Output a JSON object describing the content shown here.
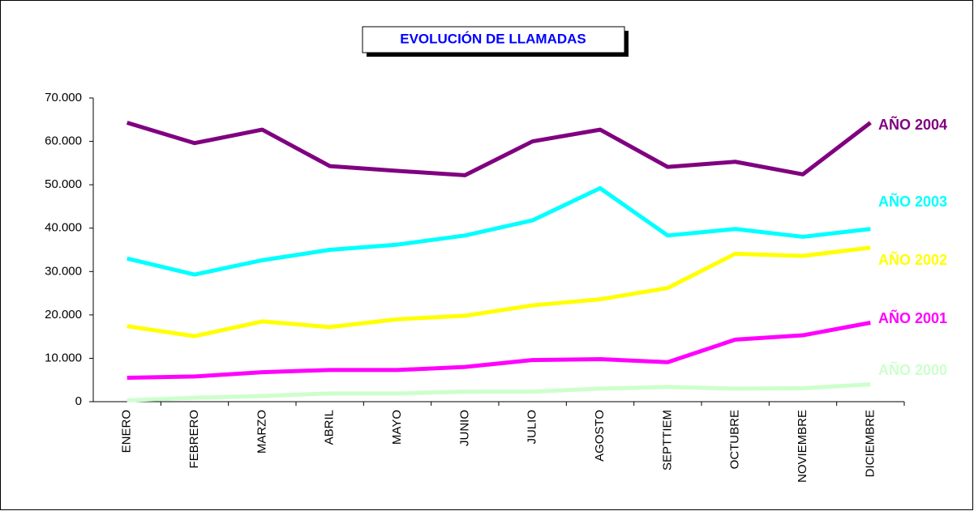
{
  "chart_data": {
    "type": "line",
    "title": "EVOLUCIÓN DE LLAMADAS",
    "categories": [
      "ENERO",
      "FEBRERO",
      "MARZO",
      "ABRIL",
      "MAYO",
      "JUNIO",
      "JULIO",
      "AGOSTO",
      "SEPTTIEM",
      "OCTUBRE",
      "NOVIEMBRE",
      "DICIEMBRE"
    ],
    "series": [
      {
        "name": "AÑO 2004",
        "color": "#800080",
        "values": [
          64300,
          59600,
          62700,
          54300,
          53200,
          52200,
          60000,
          62700,
          54100,
          55300,
          52400,
          64300
        ]
      },
      {
        "name": "AÑO 2003",
        "color": "#00ffff",
        "values": [
          33000,
          29300,
          32600,
          35000,
          36200,
          38300,
          41800,
          49200,
          38300,
          39800,
          38000,
          39800
        ]
      },
      {
        "name": "AÑO 2002",
        "color": "#ffff00",
        "values": [
          17400,
          15100,
          18500,
          17200,
          19000,
          19800,
          22200,
          23600,
          26200,
          34100,
          33600,
          35500
        ]
      },
      {
        "name": "AÑO 2001",
        "color": "#ff00ff",
        "values": [
          5500,
          5800,
          6800,
          7300,
          7300,
          8000,
          9600,
          9800,
          9100,
          14300,
          15300,
          18200
        ]
      },
      {
        "name": "AÑO 2000",
        "color": "#ccffcc",
        "values": [
          300,
          900,
          1300,
          1900,
          1900,
          2300,
          2300,
          3000,
          3400,
          3000,
          3100,
          4000
        ]
      }
    ],
    "ylim": [
      0,
      70000
    ],
    "yticks": [
      0,
      {
        "value": 10000,
        "label": "10.000"
      },
      {
        "value": 20000,
        "label": "20.000"
      },
      {
        "value": 30000,
        "label": "30.000"
      },
      {
        "value": 40000,
        "label": "40.000"
      },
      {
        "value": 50000,
        "label": "50.000"
      },
      {
        "value": 60000,
        "label": "60.000"
      },
      {
        "value": 70000,
        "label": "70.000"
      }
    ],
    "grid": false
  }
}
